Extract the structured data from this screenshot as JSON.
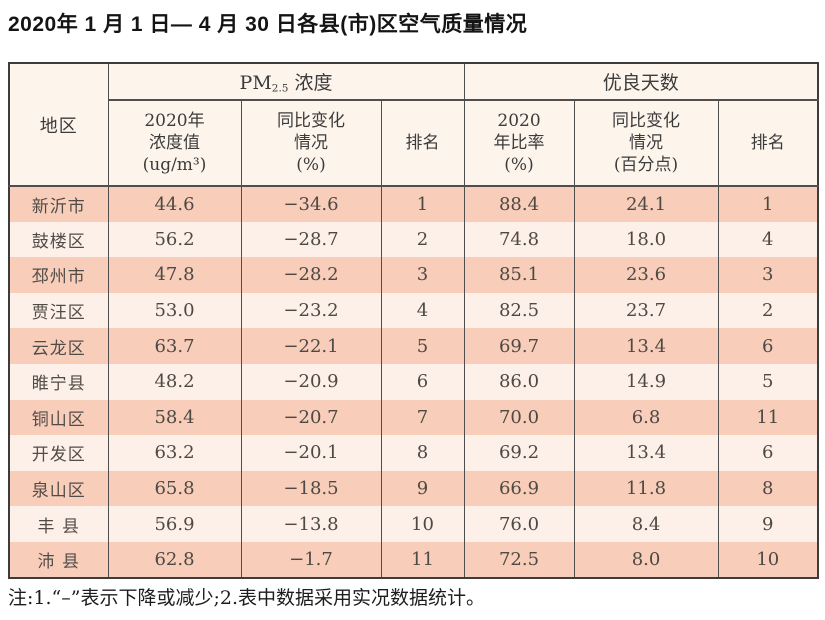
{
  "title": "2020年 1 月 1 日— 4 月 30 日各县(市)区空气质量情况",
  "table": {
    "header": {
      "region": "地区",
      "pm_group": {
        "prefix": "PM",
        "sub": "2.5",
        "suffix": " 浓度"
      },
      "good_days_group": "优良天数",
      "pm_value": "2020年\n浓度值\n(ug/m³)",
      "pm_change": "同比变化\n情况\n(%)",
      "pm_rank": "排名",
      "gd_rate": "2020\n年比率\n(%)",
      "gd_change": "同比变化\n情况\n(百分点)",
      "gd_rank": "排名"
    },
    "rows": [
      {
        "region": "新沂市",
        "pm_value": "44.6",
        "pm_change": "−34.6",
        "pm_rank": "1",
        "gd_rate": "88.4",
        "gd_change": "24.1",
        "gd_rank": "1"
      },
      {
        "region": "鼓楼区",
        "pm_value": "56.2",
        "pm_change": "−28.7",
        "pm_rank": "2",
        "gd_rate": "74.8",
        "gd_change": "18.0",
        "gd_rank": "4"
      },
      {
        "region": "邳州市",
        "pm_value": "47.8",
        "pm_change": "−28.2",
        "pm_rank": "3",
        "gd_rate": "85.1",
        "gd_change": "23.6",
        "gd_rank": "3"
      },
      {
        "region": "贾汪区",
        "pm_value": "53.0",
        "pm_change": "−23.2",
        "pm_rank": "4",
        "gd_rate": "82.5",
        "gd_change": "23.7",
        "gd_rank": "2"
      },
      {
        "region": "云龙区",
        "pm_value": "63.7",
        "pm_change": "−22.1",
        "pm_rank": "5",
        "gd_rate": "69.7",
        "gd_change": "13.4",
        "gd_rank": "6"
      },
      {
        "region": "睢宁县",
        "pm_value": "48.2",
        "pm_change": "−20.9",
        "pm_rank": "6",
        "gd_rate": "86.0",
        "gd_change": "14.9",
        "gd_rank": "5"
      },
      {
        "region": "铜山区",
        "pm_value": "58.4",
        "pm_change": "−20.7",
        "pm_rank": "7",
        "gd_rate": "70.0",
        "gd_change": "6.8",
        "gd_rank": "11"
      },
      {
        "region": "开发区",
        "pm_value": "63.2",
        "pm_change": "−20.1",
        "pm_rank": "8",
        "gd_rate": "69.2",
        "gd_change": "13.4",
        "gd_rank": "6"
      },
      {
        "region": "泉山区",
        "pm_value": "65.8",
        "pm_change": "−18.5",
        "pm_rank": "9",
        "gd_rate": "66.9",
        "gd_change": "11.8",
        "gd_rank": "8"
      },
      {
        "region": "丰 县",
        "pm_value": "56.9",
        "pm_change": "−13.8",
        "pm_rank": "10",
        "gd_rate": "76.0",
        "gd_change": "8.4",
        "gd_rank": "9"
      },
      {
        "region": "沛 县",
        "pm_value": "62.8",
        "pm_change": "−1.7",
        "pm_rank": "11",
        "gd_rate": "72.5",
        "gd_change": "8.0",
        "gd_rank": "10"
      }
    ]
  },
  "footnote": "注:1.“–”表示下降或减少;2.表中数据采用实况数据统计。",
  "colors": {
    "row_band_salmon": "#f8cdb9",
    "row_band_light": "#fdf0e8",
    "header_bg": "#fdf4ec",
    "border": "#4e4e4e",
    "text": "#4d4944"
  }
}
